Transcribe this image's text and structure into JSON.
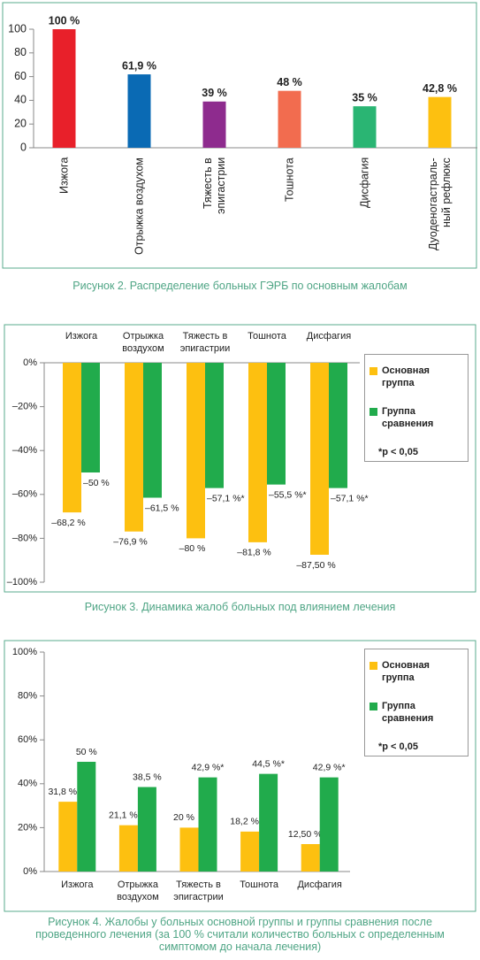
{
  "chart_data": [
    {
      "type": "bar",
      "categories": [
        "Изжога",
        "Отрыжка воздухом",
        "Тяжесть в эпигастрии",
        "Тошнота",
        "Дисфагия",
        "Дуоденогастраль-ный рефлюкс"
      ],
      "values": [
        100,
        61.9,
        39,
        48,
        35,
        42.8
      ],
      "value_labels": [
        "100 %",
        "61,9 %",
        "39 %",
        "48 %",
        "35 %",
        "42,8 %"
      ],
      "colors": [
        "#e8202a",
        "#0a6ab4",
        "#8e2b8e",
        "#f26c4f",
        "#2ab573",
        "#fdc010"
      ],
      "ylim": [
        0,
        100
      ],
      "yticks": [
        0,
        20,
        40,
        60,
        80,
        100
      ],
      "grid": false,
      "caption": "Рисунок 2.  Распределение больных ГЭРБ по основным жалобам"
    },
    {
      "type": "grouped-bar",
      "categories": [
        "Изжога",
        "Отрыжка воздухом",
        "Тяжесть в эпигастрии",
        "Тошнота",
        "Дисфагия"
      ],
      "series": [
        {
          "name": "Основная группа",
          "color": "#fdc010",
          "values": [
            -68.2,
            -76.9,
            -80,
            -81.8,
            -87.5
          ],
          "value_labels": [
            "–68,2 %",
            "–76,9 %",
            "–80 %",
            "–81,8 %",
            "–87,50 %"
          ]
        },
        {
          "name": "Группа сравнения",
          "color": "#21ab4c",
          "values": [
            -50,
            -61.5,
            -57.1,
            -55.5,
            -57.1
          ],
          "value_labels": [
            "–50 %",
            "–61,5 %",
            "–57,1 %*",
            "–55,5 %*",
            "–57,1 %*"
          ]
        }
      ],
      "ylim": [
        -100,
        0
      ],
      "yticks": [
        {
          "value": -100,
          "label": "–100%"
        },
        {
          "value": -80,
          "label": "–80%"
        },
        {
          "value": -60,
          "label": "–60%"
        },
        {
          "value": -40,
          "label": "–40%"
        },
        {
          "value": -20,
          "label": "–20%"
        },
        {
          "value": 0,
          "label": "0%"
        }
      ],
      "grid": false,
      "legend": "right",
      "note": "*p < 0,05",
      "caption": "Рисунок 3.  Динамика жалоб больных под влиянием лечения"
    },
    {
      "type": "grouped-bar",
      "categories": [
        "Изжога",
        "Отрыжка воздухом",
        "Тяжесть в эпигастрии",
        "Тошнота",
        "Дисфагия"
      ],
      "series": [
        {
          "name": "Основная группа",
          "color": "#fdc010",
          "values": [
            31.8,
            21.1,
            20,
            18.2,
            12.5
          ],
          "value_labels": [
            "31,8 %",
            "21,1 %",
            "20 %",
            "18,2 %",
            "12,50 %"
          ]
        },
        {
          "name": "Группа сравнения",
          "color": "#21ab4c",
          "values": [
            50,
            38.5,
            42.9,
            44.5,
            42.9
          ],
          "value_labels": [
            "50 %",
            "38,5 %",
            "42,9 %*",
            "44,5 %*",
            "42,9 %*"
          ]
        }
      ],
      "ylim": [
        0,
        100
      ],
      "yticks": [
        {
          "value": 0,
          "label": "0%"
        },
        {
          "value": 20,
          "label": "20%"
        },
        {
          "value": 40,
          "label": "40%"
        },
        {
          "value": 60,
          "label": "60%"
        },
        {
          "value": 80,
          "label": "80%"
        },
        {
          "value": 100,
          "label": "100%"
        }
      ],
      "grid": false,
      "legend": "right",
      "note": "*p < 0,05",
      "caption": "Рисунок 4.  Жалобы у больных основной группы и группы сравнения после проведенного лечения (за 100 % считали количество больных с определенным симптомом до начала лечения)"
    }
  ]
}
